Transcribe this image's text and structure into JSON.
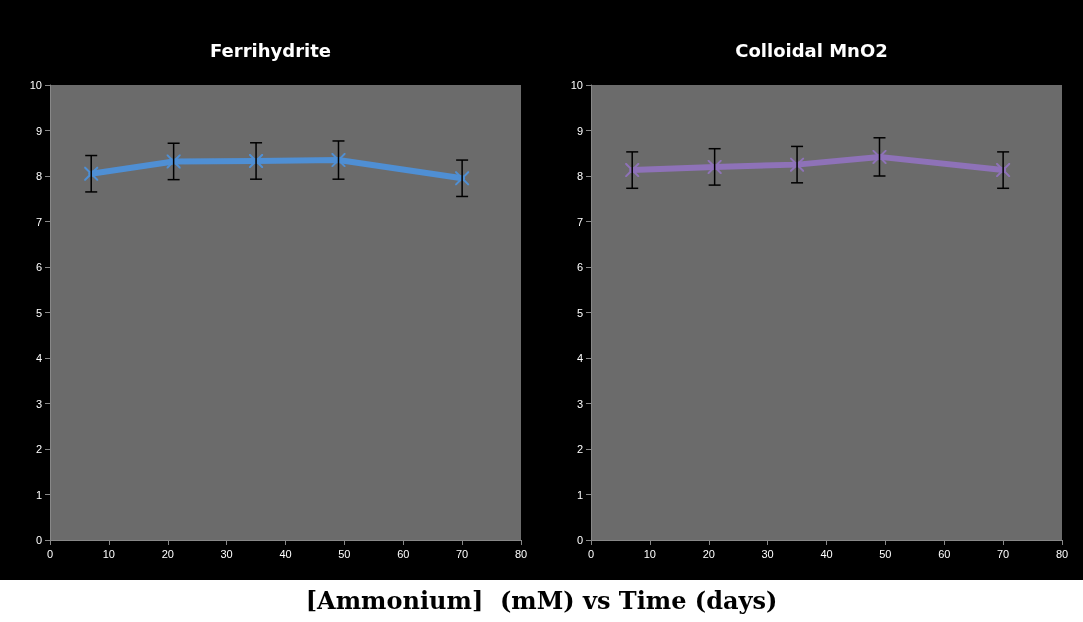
{
  "chart_data": [
    {
      "type": "line",
      "title": "Ferrihydrite",
      "x": [
        7,
        21,
        35,
        49,
        70
      ],
      "marker": "cross",
      "series": [
        {
          "color": "#4f8fd4",
          "values": [
            8.05,
            8.32,
            8.33,
            8.35,
            7.95
          ],
          "errors": [
            0.4,
            0.4,
            0.4,
            0.42,
            0.4
          ]
        }
      ],
      "xlim": [
        0,
        80
      ],
      "xticks": [
        0,
        10,
        20,
        30,
        40,
        50,
        60,
        70,
        80
      ],
      "ylim": [
        0,
        10
      ],
      "yticks": [
        0,
        1,
        2,
        3,
        4,
        5,
        6,
        7,
        8,
        9,
        10
      ],
      "annotations": [
        "[Ammonium]  (mM) vs Time (days)"
      ]
    },
    {
      "type": "line",
      "title": "Colloidal MnO2",
      "x": [
        7,
        21,
        35,
        49,
        70
      ],
      "marker": "cross",
      "series": [
        {
          "color": "#8e72b8",
          "values": [
            8.13,
            8.2,
            8.25,
            8.42,
            8.13
          ],
          "errors": [
            0.4,
            0.4,
            0.4,
            0.42,
            0.4
          ]
        }
      ],
      "xlim": [
        0,
        80
      ],
      "xticks": [
        0,
        10,
        20,
        30,
        40,
        50,
        60,
        70,
        80
      ],
      "ylim": [
        0,
        10
      ],
      "yticks": [
        0,
        1,
        2,
        3,
        4,
        5,
        6,
        7,
        8,
        9,
        10
      ]
    }
  ]
}
